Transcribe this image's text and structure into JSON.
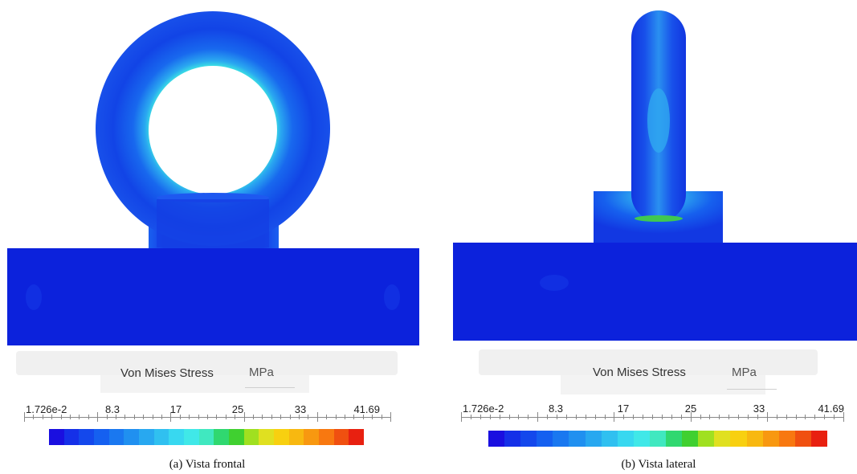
{
  "panel_a": {
    "legend": {
      "title": "Von Mises Stress",
      "unit": "MPa",
      "ticks": [
        "1.726e-2",
        "8.3",
        "17",
        "25",
        "33",
        "41.69"
      ]
    },
    "caption": "(a) Vista frontal"
  },
  "panel_b": {
    "legend": {
      "title": "Von Mises Stress",
      "unit": "MPa",
      "ticks": [
        "1.726e-2",
        "8.3",
        "17",
        "25",
        "33",
        "41.69"
      ]
    },
    "caption": "(b) Vista lateral"
  },
  "colors": {
    "low": "#0a1fd8",
    "colormap": [
      "#1a0fe0",
      "#1530e8",
      "#1448ec",
      "#1560f0",
      "#1a78f0",
      "#2090f0",
      "#28a8f0",
      "#30c0f0",
      "#38d8f0",
      "#40e8e8",
      "#40e8c0",
      "#30d870",
      "#40d030",
      "#a0e020",
      "#e0e020",
      "#f8d010",
      "#f8b810",
      "#f89810",
      "#f87810",
      "#f05010",
      "#e82010"
    ]
  }
}
